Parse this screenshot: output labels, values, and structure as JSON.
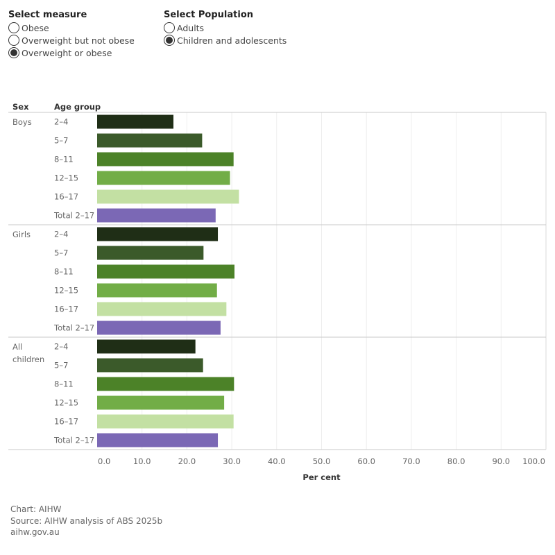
{
  "controls": {
    "measure": {
      "title": "Select measure",
      "options": [
        {
          "label": "Obese",
          "selected": false
        },
        {
          "label": "Overweight but not obese",
          "selected": false
        },
        {
          "label": "Overweight or obese",
          "selected": true
        }
      ]
    },
    "population": {
      "title": "Select Population",
      "options": [
        {
          "label": "Adults",
          "selected": false
        },
        {
          "label": "Children and adolescents",
          "selected": true
        }
      ]
    }
  },
  "chart_data": {
    "type": "bar",
    "orientation": "horizontal",
    "row_headers": [
      "Sex",
      "Age group"
    ],
    "xlabel": "Per cent",
    "xlim": [
      0,
      100
    ],
    "xticks": [
      "0.0",
      "10.0",
      "20.0",
      "30.0",
      "40.0",
      "50.0",
      "60.0",
      "70.0",
      "80.0",
      "90.0",
      "100.0"
    ],
    "groups": [
      {
        "name": "Boys",
        "categories": [
          "2–4",
          "5–7",
          "8–11",
          "12–15",
          "16–17",
          "Total 2–17"
        ],
        "values": [
          17.0,
          23.4,
          30.4,
          29.6,
          31.6,
          26.4
        ]
      },
      {
        "name": "Girls",
        "categories": [
          "2–4",
          "5–7",
          "8–11",
          "12–15",
          "16–17",
          "Total 2–17"
        ],
        "values": [
          26.9,
          23.7,
          30.6,
          26.7,
          28.8,
          27.5
        ]
      },
      {
        "name": "All children",
        "categories": [
          "2–4",
          "5–7",
          "8–11",
          "12–15",
          "16–17",
          "Total 2–17"
        ],
        "values": [
          21.9,
          23.6,
          30.5,
          28.3,
          30.4,
          26.9
        ]
      }
    ],
    "colors": [
      "#1f2e16",
      "#3b5a2a",
      "#4c8228",
      "#72ad47",
      "#c3e0a3",
      "#7b68b5"
    ]
  },
  "footer": {
    "line1": "Chart: AIHW",
    "line2": "Source: AIHW analysis of ABS 2025b",
    "line3": "aihw.gov.au"
  }
}
